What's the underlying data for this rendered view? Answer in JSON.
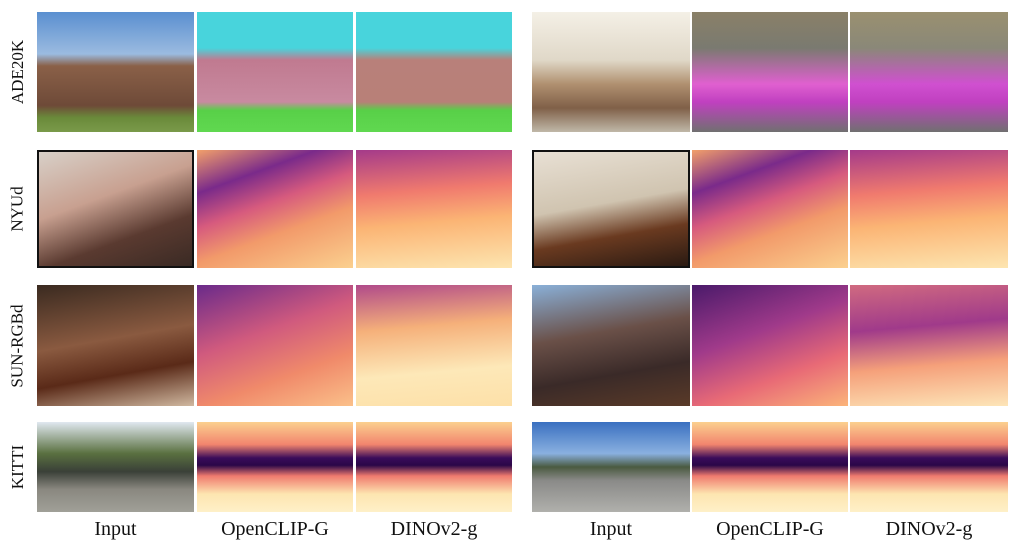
{
  "rows": [
    "ADE20K",
    "NYUd",
    "SUN-RGBd",
    "KITTI"
  ],
  "columns": [
    "Input",
    "OpenCLIP-G",
    "DINOv2-g"
  ]
}
